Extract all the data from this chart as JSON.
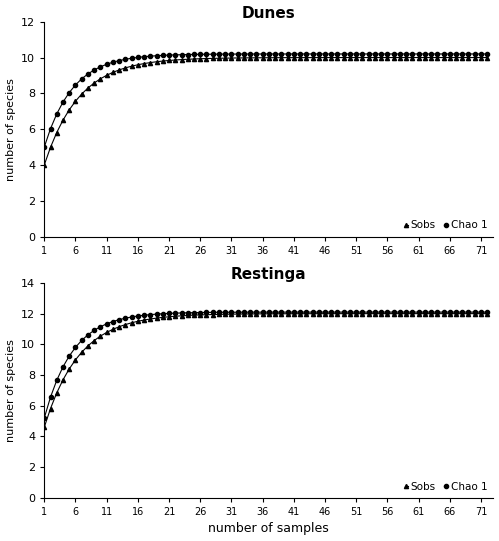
{
  "dunes": {
    "title": "Dunes",
    "ylim": [
      0,
      12
    ],
    "yticks": [
      0,
      2,
      4,
      6,
      8,
      10,
      12
    ],
    "sobs_start": 4.0,
    "sobs_asymptote": 10.0,
    "chao1_start": 5.0,
    "chao1_asymptote": 10.2,
    "sobs_rate": 0.18,
    "chao1_rate": 0.22
  },
  "restinga": {
    "title": "Restinga",
    "ylim": [
      0,
      14
    ],
    "yticks": [
      0,
      2,
      4,
      6,
      8,
      10,
      12,
      14
    ],
    "sobs_start": 4.6,
    "sobs_asymptote": 12.0,
    "chao1_start": 5.2,
    "chao1_asymptote": 12.1,
    "sobs_rate": 0.18,
    "chao1_rate": 0.22
  },
  "n_samples": 72,
  "xticks": [
    1,
    6,
    11,
    16,
    21,
    26,
    31,
    36,
    41,
    46,
    51,
    56,
    61,
    66,
    71
  ],
  "xlabel": "number of samples",
  "ylabel": "number of species",
  "sobs_color": "#000000",
  "chao1_color": "#000000",
  "sobs_marker": "^",
  "chao1_marker": "o",
  "marker_size": 3,
  "linewidth": 0.8,
  "legend_sobs": "Sobs",
  "legend_chao1": "Chao 1",
  "background_color": "#ffffff"
}
